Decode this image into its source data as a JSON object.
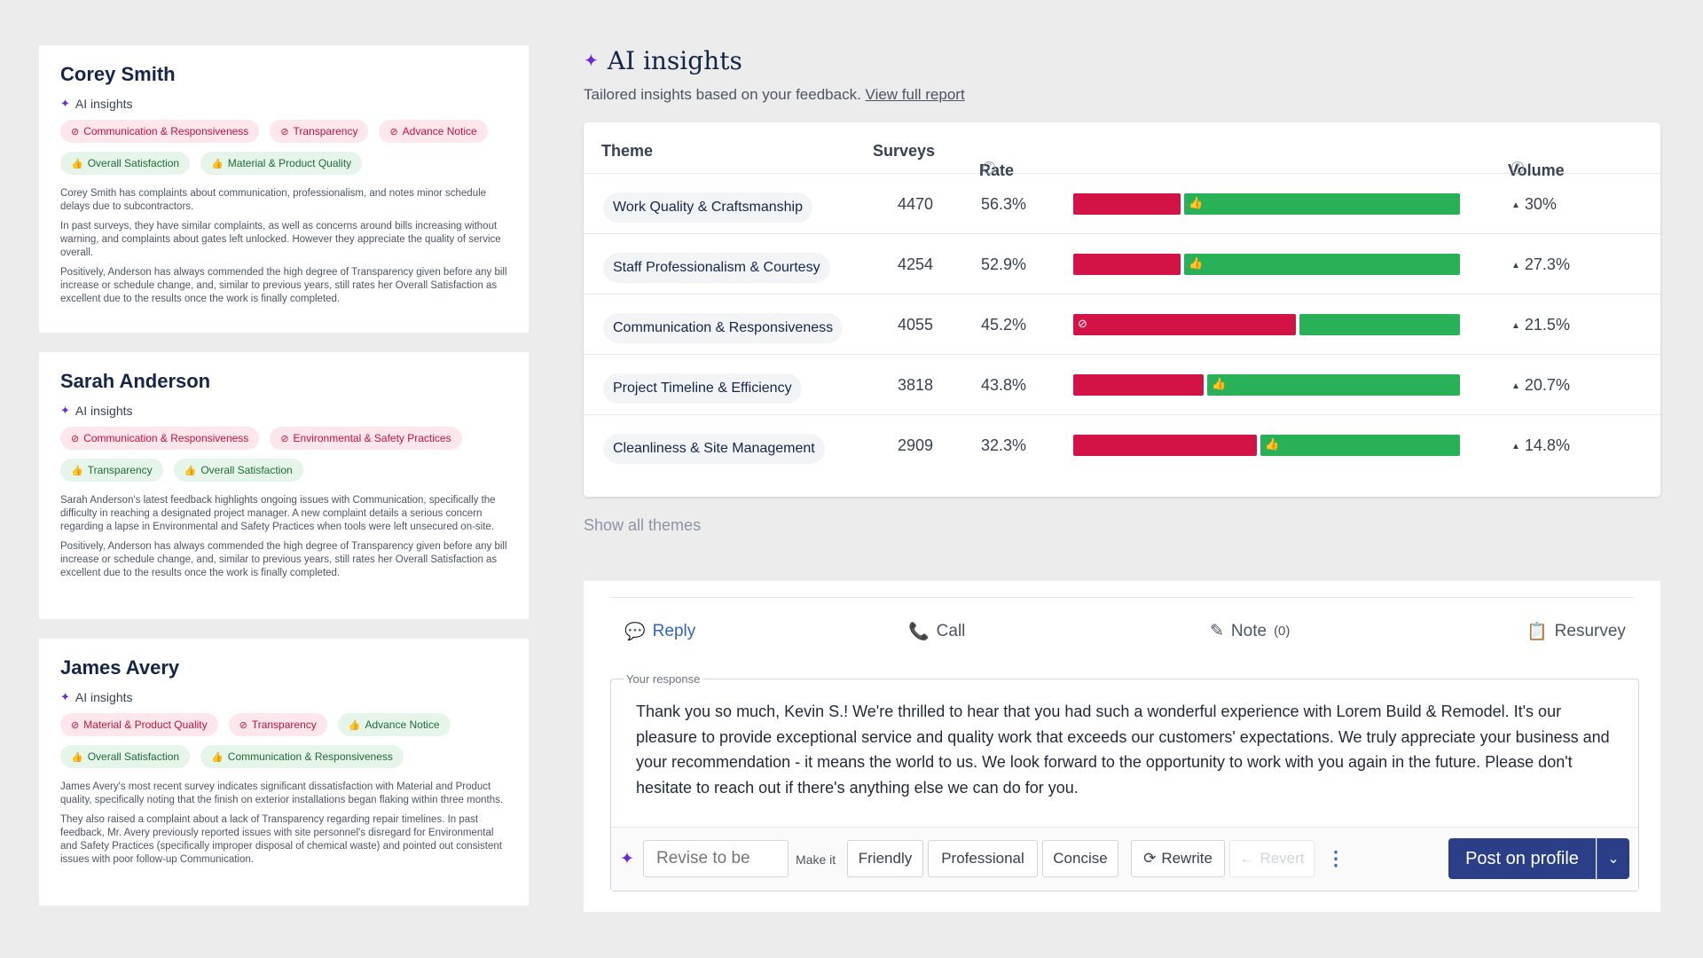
{
  "customers": [
    {
      "name": "Corey Smith",
      "ai_label": "AI insights",
      "neg_tags": [
        "Communication & Responsiveness",
        "Transparency",
        "Advance Notice"
      ],
      "pos_tags": [
        "Overall Satisfaction",
        "Material & Product Quality"
      ],
      "paragraphs": [
        "Corey Smith has complaints about communication, professionalism, and notes minor schedule delays due to subcontractors.",
        "In past surveys, they have similar complaints, as well as concerns around bills increasing without warning, and complaints about gates left unlocked. However they appreciate the quality of service overall.",
        "Positively, Anderson has always commended the high degree of Transparency given before any bill increase or schedule change, and, similar to previous years, still rates her Overall Satisfaction as excellent due to the results once the work is finally completed."
      ]
    },
    {
      "name": "Sarah Anderson",
      "ai_label": "AI insights",
      "neg_tags": [
        "Communication & Responsiveness",
        "Environmental & Safety Practices"
      ],
      "pos_tags": [
        "Transparency",
        "Overall Satisfaction"
      ],
      "paragraphs": [
        "Sarah Anderson's latest feedback highlights ongoing issues with Communication, specifically the difficulty in reaching a designated project manager. A new complaint details a serious concern regarding a lapse in Environmental and Safety Practices when tools were left unsecured on-site.",
        "Positively, Anderson has always commended the high degree of Transparency given before any bill increase or schedule change, and, similar to previous years, still rates her Overall Satisfaction as excellent due to the results once the work is finally completed."
      ]
    },
    {
      "name": "James Avery",
      "ai_label": "AI insights",
      "neg_tags": [
        "Material & Product Quality",
        "Transparency"
      ],
      "pos_tags": [
        "Advance Notice",
        "Overall Satisfaction",
        "Communication & Responsiveness"
      ],
      "paragraphs": [
        "James Avery's most recent survey indicates significant dissatisfaction with Material and Product quality, specifically noting that the finish on exterior installations began flaking within three months.",
        "They also raised a complaint about a lack of Transparency regarding repair timelines. In past feedback, Mr. Avery previously reported issues with site personnel's disregard for Environmental and Safety Practices (specifically improper disposal of chemical waste) and pointed out consistent issues with poor follow-up Communication."
      ]
    }
  ],
  "insights": {
    "title": "AI insights",
    "subtitle": "Tailored insights based on your feedback.",
    "report_link": "View full report",
    "columns": {
      "theme": "Theme",
      "surveys": "Surveys",
      "rate": "Rate",
      "volume": "Volume"
    },
    "rows": [
      {
        "theme": "Work Quality & Craftsmanship",
        "surveys": "4470",
        "rate": "56.3%",
        "neg_share": 0.28,
        "icon_side": "pos",
        "volume": "30%"
      },
      {
        "theme": "Staff Professionalism & Courtesy",
        "surveys": "4254",
        "rate": "52.9%",
        "neg_share": 0.28,
        "icon_side": "pos",
        "volume": "27.3%"
      },
      {
        "theme": "Communication & Responsiveness",
        "surveys": "4055",
        "rate": "45.2%",
        "neg_share": 0.58,
        "icon_side": "neg",
        "volume": "21.5%"
      },
      {
        "theme": "Project Timeline & Efficiency",
        "surveys": "3818",
        "rate": "43.8%",
        "neg_share": 0.34,
        "icon_side": "pos",
        "volume": "20.7%"
      },
      {
        "theme": "Cleanliness & Site Management",
        "surveys": "2909",
        "rate": "32.3%",
        "neg_share": 0.48,
        "icon_side": "pos",
        "volume": "14.8%"
      }
    ],
    "show_all": "Show all themes"
  },
  "response": {
    "tabs": {
      "reply": "Reply",
      "call": "Call",
      "note": "Note",
      "note_count": "(0)",
      "resurvey": "Resurvey"
    },
    "label": "Your response",
    "text": "Thank you so much, Kevin S.! We're thrilled to hear that you had such a wonderful experience with Lorem Build & Remodel. It's our pleasure to provide exceptional service and quality work that exceeds our customers' expectations. We truly appreciate your business and your recommendation - it means the world to us. We look forward to the opportunity to work with you again in the future. Please don't hesitate to reach out if there's anything else we can do for you.",
    "revise_placeholder": "Revise to be",
    "make_it": "Make it",
    "tones": [
      "Friendly",
      "Professional",
      "Concise"
    ],
    "rewrite": "Rewrite",
    "revert": "Revert",
    "post": "Post on profile"
  },
  "colors": {
    "negative": "#d31245",
    "positive": "#29b157",
    "primary": "#2b3f88",
    "link": "#2d64c2",
    "heading": "#14254a"
  }
}
